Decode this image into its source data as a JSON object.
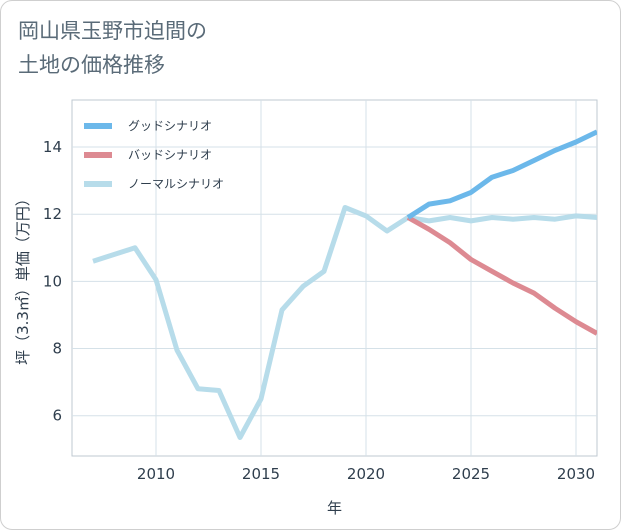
{
  "title": {
    "line1": "岡山県玉野市迫間の",
    "line2": "土地の価格推移"
  },
  "chart_data": {
    "type": "line",
    "xlabel": "年",
    "ylabel": "坪（3.3㎡）単価（万円）",
    "xlim": [
      2006,
      2031
    ],
    "ylim": [
      4.8,
      15.4
    ],
    "x_ticks": [
      2010,
      2015,
      2020,
      2025,
      2030
    ],
    "y_ticks": [
      6,
      8,
      10,
      12,
      14
    ],
    "grid": true,
    "legend_position": "top-left",
    "series": [
      {
        "name": "グッドシナリオ",
        "color": "#6cb8ea",
        "x": [
          2022,
          2023,
          2024,
          2025,
          2026,
          2027,
          2028,
          2029,
          2030,
          2031
        ],
        "y": [
          11.9,
          12.3,
          12.4,
          12.65,
          13.1,
          13.3,
          13.6,
          13.9,
          14.15,
          14.45
        ]
      },
      {
        "name": "バッドシナリオ",
        "color": "#dd8a92",
        "x": [
          2022,
          2023,
          2024,
          2025,
          2026,
          2027,
          2028,
          2029,
          2030,
          2031
        ],
        "y": [
          11.9,
          11.55,
          11.15,
          10.65,
          10.3,
          9.95,
          9.65,
          9.2,
          8.8,
          8.45
        ]
      },
      {
        "name": "ノーマルシナリオ",
        "color": "#b7dcea",
        "x": [
          2007,
          2008,
          2009,
          2010,
          2011,
          2012,
          2013,
          2014,
          2015,
          2016,
          2017,
          2018,
          2019,
          2020,
          2021,
          2022,
          2023,
          2024,
          2025,
          2026,
          2027,
          2028,
          2029,
          2030,
          2031
        ],
        "y": [
          10.6,
          10.8,
          11.0,
          10.05,
          7.95,
          6.8,
          6.75,
          5.35,
          6.5,
          9.15,
          9.85,
          10.3,
          12.2,
          11.95,
          11.5,
          11.9,
          11.8,
          11.9,
          11.8,
          11.9,
          11.85,
          11.9,
          11.85,
          11.95,
          11.9
        ]
      }
    ]
  }
}
